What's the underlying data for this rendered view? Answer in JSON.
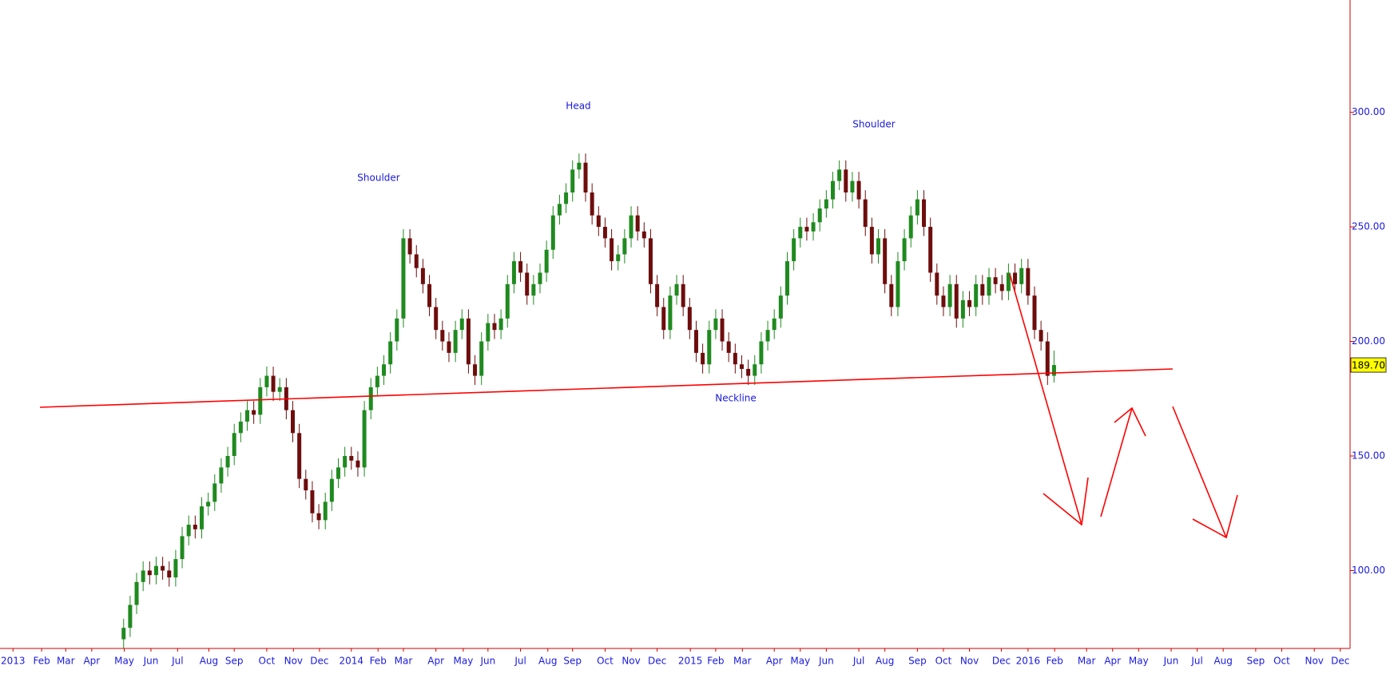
{
  "chart_data": {
    "type": "candlestick",
    "x": [
      17,
      18,
      19,
      20,
      21,
      22,
      23,
      24,
      25,
      26,
      27,
      28,
      29,
      30,
      31,
      32,
      33,
      34,
      35,
      36,
      37,
      38,
      39,
      40,
      41,
      42,
      43,
      44,
      45,
      46,
      47,
      48,
      49,
      50,
      51,
      52,
      53,
      54,
      55,
      56,
      57,
      58,
      59,
      60,
      61,
      62,
      63,
      64,
      65,
      66,
      67,
      68,
      69,
      70,
      71,
      72,
      73,
      74,
      75,
      76,
      77,
      78,
      79,
      80,
      81,
      82,
      83,
      84,
      85,
      86,
      87,
      88,
      89,
      90,
      91,
      92,
      93,
      94,
      95,
      96,
      97,
      98,
      99,
      100,
      101,
      102,
      103,
      104,
      105,
      106,
      107,
      108,
      109,
      110,
      111,
      112,
      113,
      114,
      115,
      116,
      117,
      118,
      119,
      120,
      121,
      122,
      123,
      124,
      125,
      126,
      127,
      128,
      129,
      130,
      131,
      132,
      133,
      134,
      135,
      136,
      137,
      138,
      139,
      140,
      141,
      142,
      143,
      144,
      145,
      146,
      147,
      148,
      149,
      150,
      151,
      152,
      153,
      154,
      155,
      156,
      157,
      158,
      159,
      160
    ],
    "open": [
      70,
      75,
      85,
      95,
      100,
      98,
      102,
      100,
      97,
      105,
      115,
      120,
      118,
      128,
      130,
      138,
      145,
      150,
      160,
      165,
      170,
      168,
      180,
      185,
      178,
      180,
      170,
      160,
      140,
      135,
      125,
      122,
      130,
      140,
      145,
      150,
      148,
      145,
      170,
      180,
      185,
      190,
      200,
      210,
      245,
      238,
      232,
      225,
      215,
      205,
      200,
      195,
      205,
      210,
      190,
      185,
      200,
      208,
      205,
      210,
      225,
      235,
      230,
      220,
      225,
      230,
      240,
      255,
      260,
      265,
      275,
      278,
      265,
      255,
      250,
      245,
      235,
      238,
      245,
      255,
      248,
      245,
      225,
      215,
      205,
      220,
      225,
      215,
      205,
      195,
      190,
      205,
      210,
      200,
      195,
      190,
      188,
      185,
      190,
      200,
      205,
      210,
      220,
      235,
      245,
      250,
      248,
      252,
      258,
      262,
      270,
      275,
      265,
      270,
      262,
      250,
      238,
      245,
      225,
      215,
      235,
      245,
      255,
      262,
      250,
      230,
      220,
      215,
      225,
      210,
      218,
      215,
      225,
      220,
      228,
      225,
      222,
      230,
      225,
      232,
      220,
      205,
      200,
      185
    ],
    "high": [
      79,
      89,
      99,
      104,
      104,
      106,
      106,
      104,
      109,
      119,
      124,
      124,
      132,
      134,
      142,
      149,
      154,
      164,
      169,
      174,
      174,
      184,
      189,
      189,
      184,
      184,
      174,
      164,
      144,
      139,
      129,
      134,
      144,
      149,
      154,
      154,
      152,
      174,
      184,
      189,
      194,
      204,
      214,
      249,
      249,
      242,
      236,
      229,
      219,
      209,
      204,
      209,
      214,
      214,
      194,
      204,
      212,
      212,
      214,
      229,
      239,
      239,
      234,
      229,
      234,
      244,
      259,
      264,
      269,
      279,
      282,
      282,
      269,
      259,
      254,
      249,
      242,
      249,
      259,
      259,
      252,
      249,
      229,
      219,
      224,
      229,
      229,
      219,
      209,
      199,
      209,
      214,
      214,
      204,
      199,
      194,
      192,
      194,
      204,
      209,
      214,
      224,
      239,
      249,
      254,
      254,
      256,
      262,
      266,
      274,
      279,
      279,
      274,
      274,
      266,
      254,
      249,
      249,
      229,
      239,
      249,
      259,
      266,
      266,
      254,
      234,
      224,
      229,
      229,
      222,
      222,
      229,
      229,
      232,
      232,
      229,
      234,
      234,
      236,
      236,
      224,
      209,
      204,
      196
    ],
    "low": [
      66,
      71,
      81,
      91,
      94,
      94,
      96,
      93,
      93,
      101,
      111,
      114,
      114,
      124,
      126,
      134,
      141,
      146,
      156,
      161,
      164,
      164,
      176,
      174,
      174,
      166,
      156,
      136,
      131,
      121,
      118,
      118,
      126,
      136,
      141,
      144,
      141,
      141,
      166,
      176,
      181,
      186,
      196,
      206,
      234,
      228,
      221,
      211,
      201,
      196,
      191,
      191,
      201,
      186,
      181,
      181,
      196,
      201,
      201,
      206,
      221,
      226,
      216,
      216,
      221,
      226,
      236,
      251,
      256,
      261,
      271,
      261,
      251,
      246,
      241,
      231,
      231,
      234,
      241,
      244,
      241,
      221,
      211,
      201,
      201,
      216,
      211,
      201,
      191,
      186,
      186,
      201,
      196,
      191,
      186,
      184,
      181,
      181,
      186,
      196,
      201,
      206,
      216,
      231,
      241,
      244,
      244,
      248,
      254,
      258,
      266,
      261,
      261,
      258,
      246,
      234,
      234,
      221,
      211,
      211,
      231,
      241,
      251,
      246,
      226,
      216,
      211,
      211,
      206,
      206,
      211,
      211,
      216,
      216,
      221,
      218,
      218,
      221,
      221,
      216,
      201,
      196,
      181,
      182
    ],
    "close": [
      75,
      85,
      95,
      100,
      98,
      102,
      100,
      97,
      105,
      115,
      120,
      118,
      128,
      130,
      138,
      145,
      150,
      160,
      165,
      170,
      168,
      180,
      185,
      178,
      180,
      170,
      160,
      140,
      135,
      125,
      122,
      130,
      140,
      145,
      150,
      148,
      145,
      170,
      180,
      185,
      190,
      200,
      210,
      245,
      238,
      232,
      225,
      215,
      205,
      200,
      195,
      205,
      210,
      190,
      185,
      200,
      208,
      205,
      210,
      225,
      235,
      230,
      220,
      225,
      230,
      240,
      255,
      260,
      265,
      275,
      278,
      265,
      255,
      250,
      245,
      235,
      238,
      245,
      255,
      248,
      245,
      225,
      215,
      205,
      220,
      225,
      215,
      205,
      195,
      190,
      205,
      210,
      200,
      195,
      190,
      188,
      185,
      190,
      200,
      205,
      210,
      220,
      235,
      245,
      250,
      248,
      252,
      258,
      262,
      270,
      275,
      265,
      270,
      262,
      250,
      238,
      245,
      225,
      215,
      235,
      245,
      255,
      262,
      250,
      230,
      220,
      215,
      225,
      210,
      218,
      215,
      225,
      220,
      228,
      225,
      222,
      230,
      225,
      232,
      220,
      205,
      200,
      185,
      189.7
    ],
    "up_color": "#1f8a1f",
    "down_color": "#6e0d0d",
    "price_label": {
      "value": 189.7,
      "label": "189.70"
    },
    "annotations": [
      "Shoulder",
      "Head",
      "Shoulder",
      "Neckline"
    ],
    "xlim": [
      -2,
      205.5
    ],
    "ylim": [
      66,
      349
    ],
    "yticks": [
      {
        "value": 100,
        "label": "100.00"
      },
      {
        "value": 150,
        "label": "150.00"
      },
      {
        "value": 200,
        "label": "200.00"
      },
      {
        "value": 250,
        "label": "250.00"
      },
      {
        "value": 300,
        "label": "300.00"
      }
    ],
    "xticks": [
      {
        "value": 0,
        "label": "2013"
      },
      {
        "value": 4.4,
        "label": "Feb"
      },
      {
        "value": 8.1,
        "label": "Mar"
      },
      {
        "value": 12.1,
        "label": "Apr"
      },
      {
        "value": 17.1,
        "label": "May"
      },
      {
        "value": 21.2,
        "label": "Jun"
      },
      {
        "value": 25.3,
        "label": "Jul"
      },
      {
        "value": 30.1,
        "label": "Aug"
      },
      {
        "value": 34,
        "label": "Sep"
      },
      {
        "value": 39,
        "label": "Oct"
      },
      {
        "value": 43.1,
        "label": "Nov"
      },
      {
        "value": 47.1,
        "label": "Dec"
      },
      {
        "value": 52,
        "label": "2014"
      },
      {
        "value": 56.1,
        "label": "Feb"
      },
      {
        "value": 60,
        "label": "Mar"
      },
      {
        "value": 65,
        "label": "Apr"
      },
      {
        "value": 69.2,
        "label": "May"
      },
      {
        "value": 73,
        "label": "Jun"
      },
      {
        "value": 78,
        "label": "Jul"
      },
      {
        "value": 82.2,
        "label": "Aug"
      },
      {
        "value": 86,
        "label": "Sep"
      },
      {
        "value": 91,
        "label": "Oct"
      },
      {
        "value": 95,
        "label": "Nov"
      },
      {
        "value": 99,
        "label": "Dec"
      },
      {
        "value": 104.1,
        "label": "2015"
      },
      {
        "value": 108,
        "label": "Feb"
      },
      {
        "value": 112.1,
        "label": "Mar"
      },
      {
        "value": 117,
        "label": "Apr"
      },
      {
        "value": 121,
        "label": "May"
      },
      {
        "value": 125,
        "label": "Jun"
      },
      {
        "value": 130,
        "label": "Jul"
      },
      {
        "value": 134,
        "label": "Aug"
      },
      {
        "value": 139,
        "label": "Sep"
      },
      {
        "value": 143,
        "label": "Oct"
      },
      {
        "value": 147,
        "label": "Nov"
      },
      {
        "value": 151.9,
        "label": "Dec"
      },
      {
        "value": 156,
        "label": "2016"
      },
      {
        "value": 160.1,
        "label": "Feb"
      },
      {
        "value": 165,
        "label": "Mar"
      },
      {
        "value": 169,
        "label": "Apr"
      },
      {
        "value": 173,
        "label": "May"
      },
      {
        "value": 178,
        "label": "Jun"
      },
      {
        "value": 182,
        "label": "Jul"
      },
      {
        "value": 186,
        "label": "Aug"
      },
      {
        "value": 191,
        "label": "Sep"
      },
      {
        "value": 195,
        "label": "Oct"
      },
      {
        "value": 200,
        "label": "Nov"
      },
      {
        "value": 204,
        "label": "Dec"
      }
    ]
  }
}
